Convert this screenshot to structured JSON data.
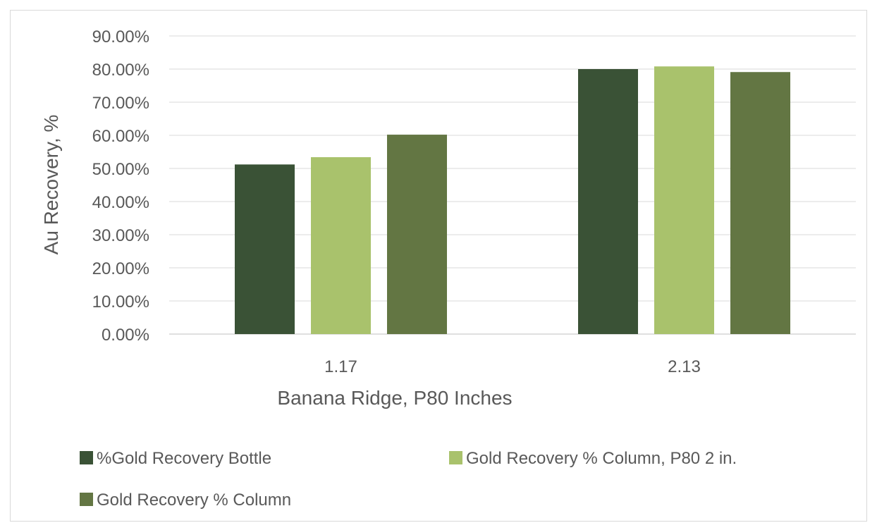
{
  "chart_data": {
    "type": "bar",
    "xlabel": "Banana Ridge, P80 Inches",
    "ylabel": "Au Recovery, %",
    "categories": [
      "1.17",
      "2.13"
    ],
    "ylim": [
      0,
      0.9
    ],
    "yticks": [
      "0.00%",
      "10.00%",
      "20.00%",
      "30.00%",
      "40.00%",
      "50.00%",
      "60.00%",
      "70.00%",
      "80.00%",
      "90.00%"
    ],
    "grid": true,
    "legend_position": "bottom",
    "series": [
      {
        "name": "%Gold Recovery Bottle",
        "values": [
          0.512,
          0.8
        ],
        "color": "#3a5236"
      },
      {
        "name": "Gold Recovery % Column, P80 2 in.",
        "values": [
          0.534,
          0.808
        ],
        "color": "#a9c26c"
      },
      {
        "name": "Gold Recovery % Column",
        "values": [
          0.602,
          0.791
        ],
        "color": "#637643"
      }
    ]
  }
}
